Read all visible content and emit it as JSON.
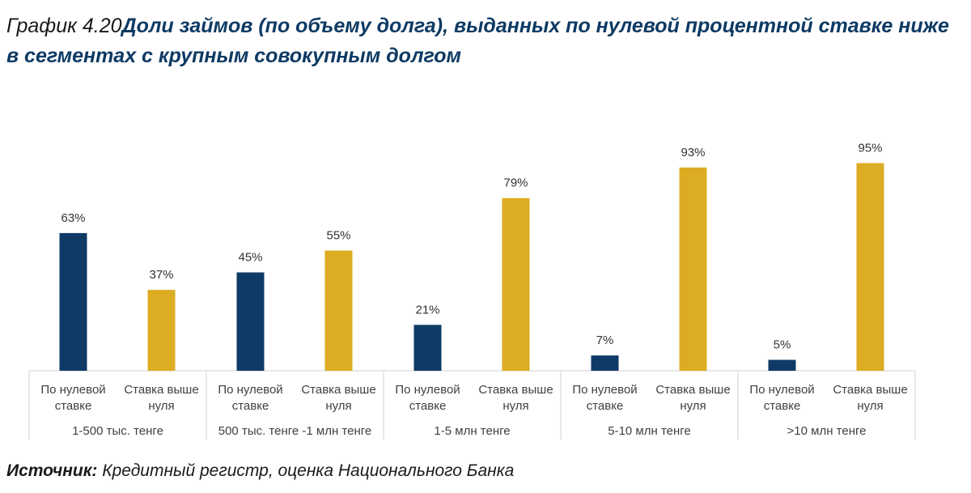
{
  "title": {
    "prefix": "График 4.20",
    "main": "Доли займов (по объему долга), выданных по нулевой процентной ставке ниже в сегментах с крупным совокупным долгом"
  },
  "source": {
    "label": "Источник:",
    "text": " Кредитный регистр, оценка Национального Банка"
  },
  "colors": {
    "zero_rate": "#0f3a66",
    "above_zero": "#dcac22"
  },
  "chart_data": {
    "type": "bar",
    "title": "Доли займов (по объему долга), выданных по нулевой процентной ставке ниже в сегментах с крупным совокупным долгом",
    "ylim": [
      0,
      100
    ],
    "grid": false,
    "groups": [
      {
        "label": "1-500 тыс. тенге",
        "bars": [
          {
            "category": [
              "По нулевой",
              "ставке"
            ],
            "value": 63,
            "value_label": "63%",
            "series": "zero_rate"
          },
          {
            "category": [
              "Ставка выше",
              "нуля"
            ],
            "value": 37,
            "value_label": "37%",
            "series": "above_zero"
          }
        ]
      },
      {
        "label": "500 тыс. тенге -1 млн тенге",
        "bars": [
          {
            "category": [
              "По нулевой",
              "ставке"
            ],
            "value": 45,
            "value_label": "45%",
            "series": "zero_rate"
          },
          {
            "category": [
              "Ставка выше",
              "нуля"
            ],
            "value": 55,
            "value_label": "55%",
            "series": "above_zero"
          }
        ]
      },
      {
        "label": "1-5 млн тенге",
        "bars": [
          {
            "category": [
              "По нулевой",
              "ставке"
            ],
            "value": 21,
            "value_label": "21%",
            "series": "zero_rate"
          },
          {
            "category": [
              "Ставка выше",
              "нуля"
            ],
            "value": 79,
            "value_label": "79%",
            "series": "above_zero"
          }
        ]
      },
      {
        "label": "5-10 млн тенге",
        "bars": [
          {
            "category": [
              "По нулевой",
              "ставке"
            ],
            "value": 7,
            "value_label": "7%",
            "series": "zero_rate"
          },
          {
            "category": [
              "Ставка выше",
              "нуля"
            ],
            "value": 93,
            "value_label": "93%",
            "series": "above_zero"
          }
        ]
      },
      {
        "label": ">10 млн тенге",
        "bars": [
          {
            "category": [
              "По нулевой",
              "ставке"
            ],
            "value": 5,
            "value_label": "5%",
            "series": "zero_rate"
          },
          {
            "category": [
              "Ставка выше",
              "нуля"
            ],
            "value": 95,
            "value_label": "95%",
            "series": "above_zero"
          }
        ]
      }
    ]
  }
}
